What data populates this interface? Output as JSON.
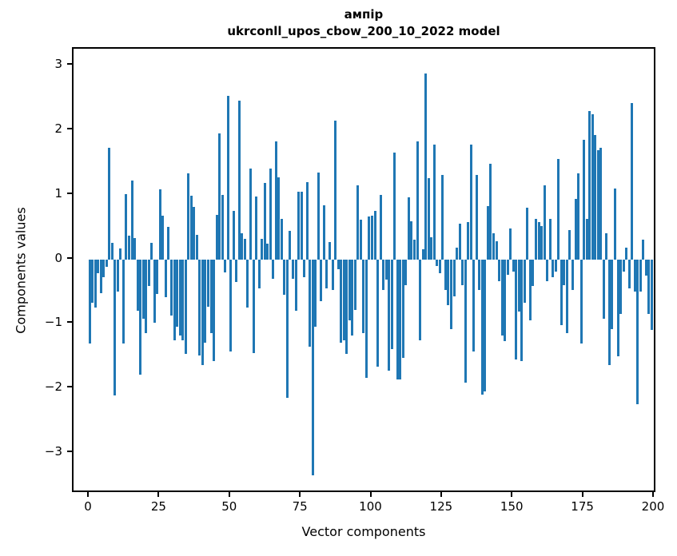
{
  "figure": {
    "background": "#ffffff"
  },
  "chart_data": {
    "type": "bar",
    "title_line1": "ампір",
    "title_line2": "ukrconll_upos_cbow_200_10_2022 model",
    "xlabel": "Vector components",
    "ylabel": "Components values",
    "bar_color": "#1f77b4",
    "axis_color": "#000000",
    "n_components": 200,
    "ylim": [
      -3.63,
      3.26
    ],
    "grid": false,
    "legend": "none",
    "xticks": [
      {
        "v": 0,
        "label": "0"
      },
      {
        "v": 25,
        "label": "25"
      },
      {
        "v": 50,
        "label": "50"
      },
      {
        "v": 75,
        "label": "75"
      },
      {
        "v": 100,
        "label": "100"
      },
      {
        "v": 125,
        "label": "125"
      },
      {
        "v": 150,
        "label": "150"
      },
      {
        "v": 175,
        "label": "175"
      },
      {
        "v": 200,
        "label": "200"
      }
    ],
    "yticks": [
      {
        "v": 3,
        "label": "3"
      },
      {
        "v": 2,
        "label": "2"
      },
      {
        "v": 1,
        "label": "1"
      },
      {
        "v": 0,
        "label": "0"
      },
      {
        "v": -1,
        "label": "−1"
      },
      {
        "v": -2,
        "label": "−2"
      },
      {
        "v": -3,
        "label": "−3"
      }
    ],
    "values": [
      -1.31,
      -0.67,
      -0.75,
      -0.21,
      -0.52,
      -0.28,
      -0.12,
      1.72,
      0.26,
      -2.11,
      -0.5,
      0.17,
      -1.3,
      1.01,
      0.36,
      1.22,
      0.33,
      -0.8,
      -1.79,
      -0.92,
      -1.14,
      -0.42,
      0.25,
      -0.98,
      -0.54,
      1.08,
      0.68,
      -0.59,
      0.5,
      -0.87,
      -1.25,
      -1.04,
      -1.18,
      -1.25,
      -1.47,
      1.33,
      0.98,
      0.81,
      0.38,
      -1.49,
      -1.64,
      -1.29,
      -0.73,
      -1.14,
      -1.58,
      0.69,
      1.95,
      1.0,
      -0.2,
      2.53,
      -1.43,
      0.75,
      -0.35,
      2.45,
      0.4,
      0.32,
      -0.75,
      1.4,
      -1.45,
      0.97,
      -0.45,
      0.31,
      1.18,
      0.24,
      1.4,
      -0.3,
      1.83,
      1.27,
      0.62,
      -0.55,
      -2.14,
      0.44,
      -0.3,
      -0.8,
      1.05,
      1.05,
      -0.28,
      1.2,
      -1.36,
      -3.34,
      -1.04,
      1.34,
      -0.65,
      0.83,
      -0.45,
      0.27,
      -0.48,
      2.15,
      -0.15,
      -1.29,
      -1.25,
      -1.47,
      -0.95,
      -1.18,
      -0.78,
      1.14,
      0.61,
      -1.15,
      -1.84,
      0.66,
      0.68,
      0.75,
      -1.66,
      1.0,
      -0.48,
      -0.32,
      -1.72,
      -1.39,
      1.65,
      -1.86,
      -1.86,
      -1.53,
      -0.4,
      0.96,
      0.59,
      0.3,
      1.83,
      -1.25,
      0.15,
      2.88,
      1.25,
      0.34,
      1.77,
      -0.1,
      -0.21,
      1.3,
      -0.48,
      -0.71,
      -1.08,
      -0.57,
      0.18,
      0.55,
      -0.4,
      -1.91,
      0.57,
      1.77,
      -1.43,
      1.31,
      -0.48,
      -2.1,
      -2.05,
      0.82,
      1.48,
      0.4,
      0.28,
      -0.34,
      -1.18,
      -1.27,
      -0.24,
      0.48,
      -0.19,
      -1.55,
      -0.81,
      -1.58,
      -0.67,
      0.8,
      -0.95,
      -0.42,
      0.63,
      0.57,
      0.51,
      1.15,
      -0.34,
      0.63,
      -0.28,
      -0.19,
      1.55,
      -1.02,
      -0.4,
      -1.14,
      0.45,
      -0.48,
      0.94,
      1.33,
      -1.31,
      1.85,
      0.62,
      2.29,
      2.25,
      1.92,
      1.69,
      1.72,
      -0.92,
      0.4,
      -1.64,
      -1.08,
      1.1,
      -1.5,
      -0.85,
      -0.19,
      0.18,
      -0.45,
      2.42,
      -0.5,
      -2.24,
      -0.5,
      0.3,
      -0.25,
      -0.85,
      -1.1
    ]
  }
}
